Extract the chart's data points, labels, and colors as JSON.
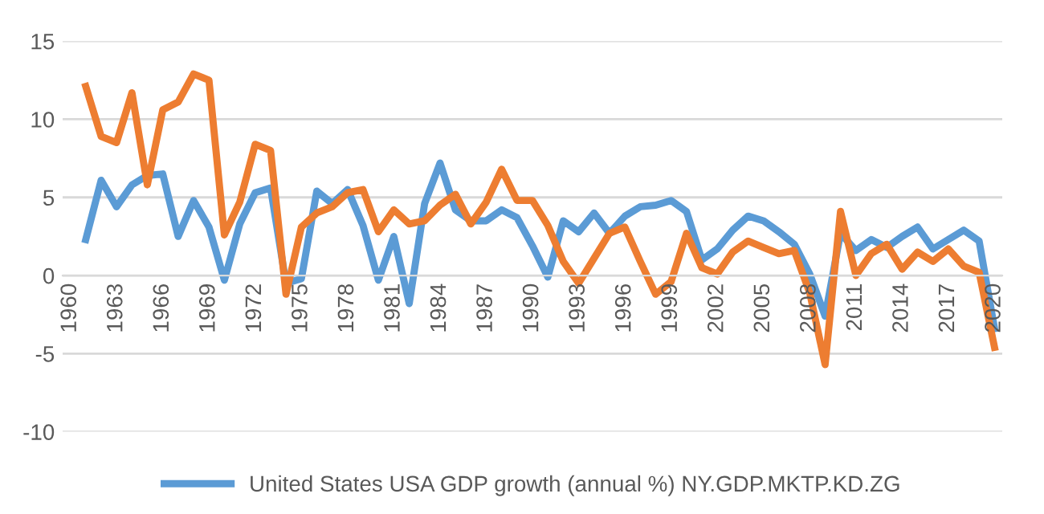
{
  "chart_data": {
    "type": "line",
    "categories": [
      "1960",
      null,
      null,
      "1963",
      null,
      null,
      "1966",
      null,
      null,
      "1969",
      null,
      null,
      "1972",
      null,
      null,
      "1975",
      null,
      null,
      "1978",
      null,
      null,
      "1981",
      null,
      null,
      "1984",
      null,
      null,
      "1987",
      null,
      null,
      "1990",
      null,
      null,
      "1993",
      null,
      null,
      "1996",
      null,
      null,
      "1999",
      null,
      null,
      "2002",
      null,
      null,
      "2005",
      null,
      null,
      "2008",
      null,
      null,
      "2011",
      null,
      null,
      "2014",
      null,
      null,
      "2017",
      null,
      null,
      "2020"
    ],
    "series": [
      {
        "name": "United States USA GDP growth (annual %) NY.GDP.MKTP.KD.ZG",
        "color": "#5b9bd5",
        "values": [
          null,
          2.3,
          6.1,
          4.4,
          5.8,
          6.4,
          6.5,
          2.5,
          4.8,
          3.1,
          -0.3,
          3.3,
          5.3,
          5.6,
          -0.5,
          -0.2,
          5.4,
          4.6,
          5.5,
          3.2,
          -0.3,
          2.5,
          -1.8,
          4.6,
          7.2,
          4.2,
          3.5,
          3.5,
          4.2,
          3.7,
          1.9,
          -0.1,
          3.5,
          2.8,
          4.0,
          2.7,
          3.8,
          4.4,
          4.5,
          4.8,
          4.1,
          1.0,
          1.7,
          2.9,
          3.8,
          3.5,
          2.8,
          2.0,
          0.1,
          -2.6,
          2.7,
          1.6,
          2.3,
          1.8,
          2.5,
          3.1,
          1.7,
          2.3,
          2.9,
          2.2,
          -3.4
        ]
      },
      {
        "color": "#ed7d31",
        "values": [
          null,
          12.1,
          8.9,
          8.5,
          11.7,
          5.8,
          10.6,
          11.1,
          12.9,
          12.5,
          2.6,
          4.7,
          8.4,
          8.0,
          -1.2,
          3.1,
          4.0,
          4.4,
          5.3,
          5.5,
          2.8,
          4.2,
          3.3,
          3.5,
          4.5,
          5.2,
          3.3,
          4.7,
          6.8,
          4.8,
          4.8,
          3.2,
          0.9,
          -0.5,
          1.1,
          2.7,
          3.1,
          0.9,
          -1.2,
          -0.4,
          2.7,
          0.5,
          0.1,
          1.5,
          2.2,
          1.8,
          1.4,
          1.6,
          -1.1,
          -5.7,
          4.1,
          0.0,
          1.4,
          2.0,
          0.4,
          1.5,
          0.9,
          1.7,
          0.6,
          0.2,
          -4.6
        ]
      }
    ],
    "ylim": [
      -10,
      15
    ],
    "yticks": [
      -10,
      -5,
      0,
      5,
      10,
      15
    ],
    "grid": "y",
    "legend": "bottom",
    "marker": "none",
    "line_style": "solid"
  }
}
